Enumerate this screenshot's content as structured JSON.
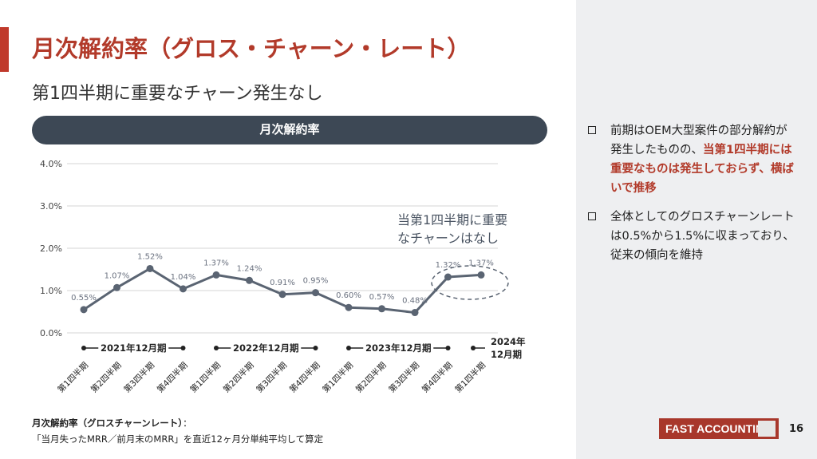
{
  "header": {
    "title": "月次解約率（グロス・チャーン・レート）",
    "subtitle": "第1四半期に重要なチャーン発生なし"
  },
  "chart_banner": "月次解約率",
  "chart_data": {
    "type": "line",
    "title": "月次解約率",
    "categories": [
      "第1四半期",
      "第2四半期",
      "第3四半期",
      "第4四半期",
      "第1四半期",
      "第2四半期",
      "第3四半期",
      "第4四半期",
      "第1四半期",
      "第2四半期",
      "第3四半期",
      "第4四半期",
      "第1四半期"
    ],
    "values": [
      0.55,
      1.07,
      1.52,
      1.04,
      1.37,
      1.24,
      0.91,
      0.95,
      0.6,
      0.57,
      0.48,
      1.32,
      1.37
    ],
    "data_labels": [
      "0.55%",
      "1.07%",
      "1.52%",
      "1.04%",
      "1.37%",
      "1.24%",
      "0.91%",
      "0.95%",
      "0.60%",
      "0.57%",
      "0.48%",
      "1.32%",
      "1.37%"
    ],
    "ylim": [
      0,
      4.0
    ],
    "yticks": [
      "0.0%",
      "1.0%",
      "2.0%",
      "3.0%",
      "4.0%"
    ],
    "grid": true,
    "line_color": "#5a6472",
    "periods": [
      "2021年12月期",
      "2022年12月期",
      "2023年12月期"
    ],
    "last_period": [
      "2024年",
      "12月期"
    ],
    "annotation": [
      "当第1四半期に重要",
      "なチャーンはなし"
    ]
  },
  "bullets": [
    {
      "parts": [
        {
          "text": "前期はOEM大型案件の部分解約が発生したものの、",
          "em": false
        },
        {
          "text": "当第1四半期には重要なものは発生しておらず、横ばいで推移",
          "em": true
        }
      ]
    },
    {
      "parts": [
        {
          "text": "全体としてのグロスチャーンレートは0.5%から1.5%に収まっており、従来の傾向を維持",
          "em": false
        }
      ]
    }
  ],
  "footnote": {
    "title": "月次解約率（グロスチャーンレート）",
    "colon": "：",
    "text": "「当月失ったMRR／前月末のMRR」を直近12ヶ月分単純平均して算定"
  },
  "logo_text": "FAST ACCOUNTING",
  "page_number": "16",
  "colors": {
    "accent": "#b23a2a",
    "banner": "#3d4855"
  }
}
